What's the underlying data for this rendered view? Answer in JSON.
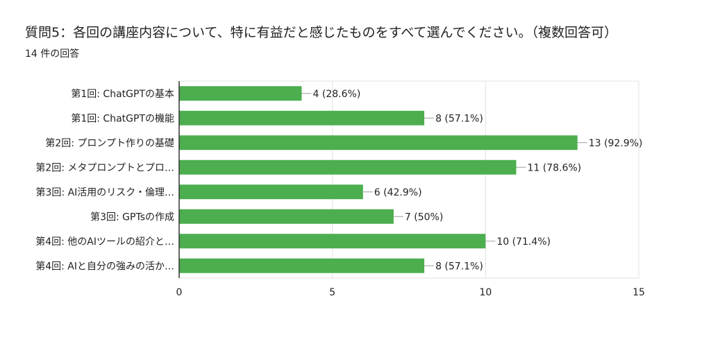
{
  "question": {
    "title": "質問5：各回の講座内容について、特に有益だと感じたものをすべて選んでください。（複数回答可）",
    "response_count": "14 件の回答"
  },
  "colors": {
    "bar": "#4cae4f",
    "grid": "#e0e0e0",
    "axis": "#333333",
    "text": "#202124"
  },
  "chart_data": {
    "type": "bar",
    "orientation": "horizontal",
    "categories": [
      "第1回: ChatGPTの基本",
      "第1回: ChatGPTの機能",
      "第2回: プロンプト作りの基礎",
      "第2回: メタプロンプトとプロ…",
      "第3回: AI活用のリスク・倫理…",
      "第3回: GPTsの作成",
      "第4回: 他のAIツールの紹介と…",
      "第4回: AIと自分の強みの活か…"
    ],
    "values": [
      4,
      8,
      13,
      11,
      6,
      7,
      10,
      8
    ],
    "data_labels": [
      "4 (28.6%)",
      "8 (57.1%)",
      "13 (92.9%)",
      "11 (78.6%)",
      "6 (42.9%)",
      "7 (50%)",
      "10 (71.4%)",
      "8 (57.1%)"
    ],
    "xlim": [
      0,
      15
    ],
    "xticks": [
      0,
      5,
      10,
      15
    ],
    "xtick_labels": [
      "0",
      "5",
      "10",
      "15"
    ],
    "grid": true
  }
}
